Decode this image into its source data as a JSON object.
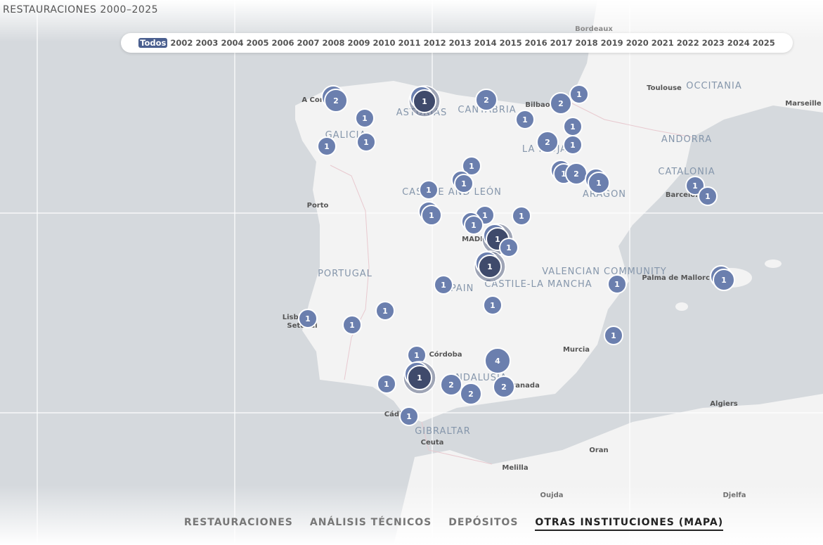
{
  "header": {
    "title": "RESTAURACIONES 2000–2025"
  },
  "filters": {
    "all": "Todos",
    "years": [
      "2002",
      "2003",
      "2004",
      "2005",
      "2006",
      "2007",
      "2008",
      "2009",
      "2010",
      "2011",
      "2012",
      "2013",
      "2014",
      "2015",
      "2016",
      "2017",
      "2018",
      "2019",
      "2020",
      "2021",
      "2022",
      "2023",
      "2024",
      "2025"
    ]
  },
  "map": {
    "places": [
      "Bordeaux",
      "Toulouse",
      "OCCITANIA",
      "Marseille",
      "A Coruña",
      "ASTURIAS",
      "CANTABRIA",
      "Bilbao",
      "GALICIA",
      "LA RIOJA",
      "ANDORRA",
      "CATALONIA",
      "Barcelona",
      "ARAGON",
      "CASTILE AND LEÓN",
      "Porto",
      "MADRID",
      "PORTUGAL",
      "SPAIN",
      "CASTILE-LA MANCHA",
      "VALENCIAN COMMUNITY",
      "Palma de Mallorca",
      "Lisboa",
      "Setúbal",
      "Córdoba",
      "Murcia",
      "ANDALUSIA",
      "Granada",
      "Algiers",
      "Cádiz",
      "GIBRALTAR",
      "Ceuta",
      "Oran",
      "Melilla",
      "Oujda",
      "Djelfa"
    ],
    "clusters": [
      2,
      1,
      2,
      1,
      1,
      1,
      1,
      2,
      1,
      2,
      1,
      1,
      1,
      1,
      1,
      2,
      1,
      1,
      1,
      1,
      1,
      1,
      1,
      1,
      1,
      1,
      1,
      1,
      1,
      1,
      1,
      1,
      1,
      1,
      4,
      1,
      1,
      2,
      2,
      2,
      1,
      1,
      1
    ]
  },
  "nav": {
    "tabs": [
      "RESTAURACIONES",
      "ANÁLISIS TÉCNICOS",
      "DEPÓSITOS",
      "OTRAS INSTITUCIONES (MAPA)"
    ],
    "active": 3
  }
}
